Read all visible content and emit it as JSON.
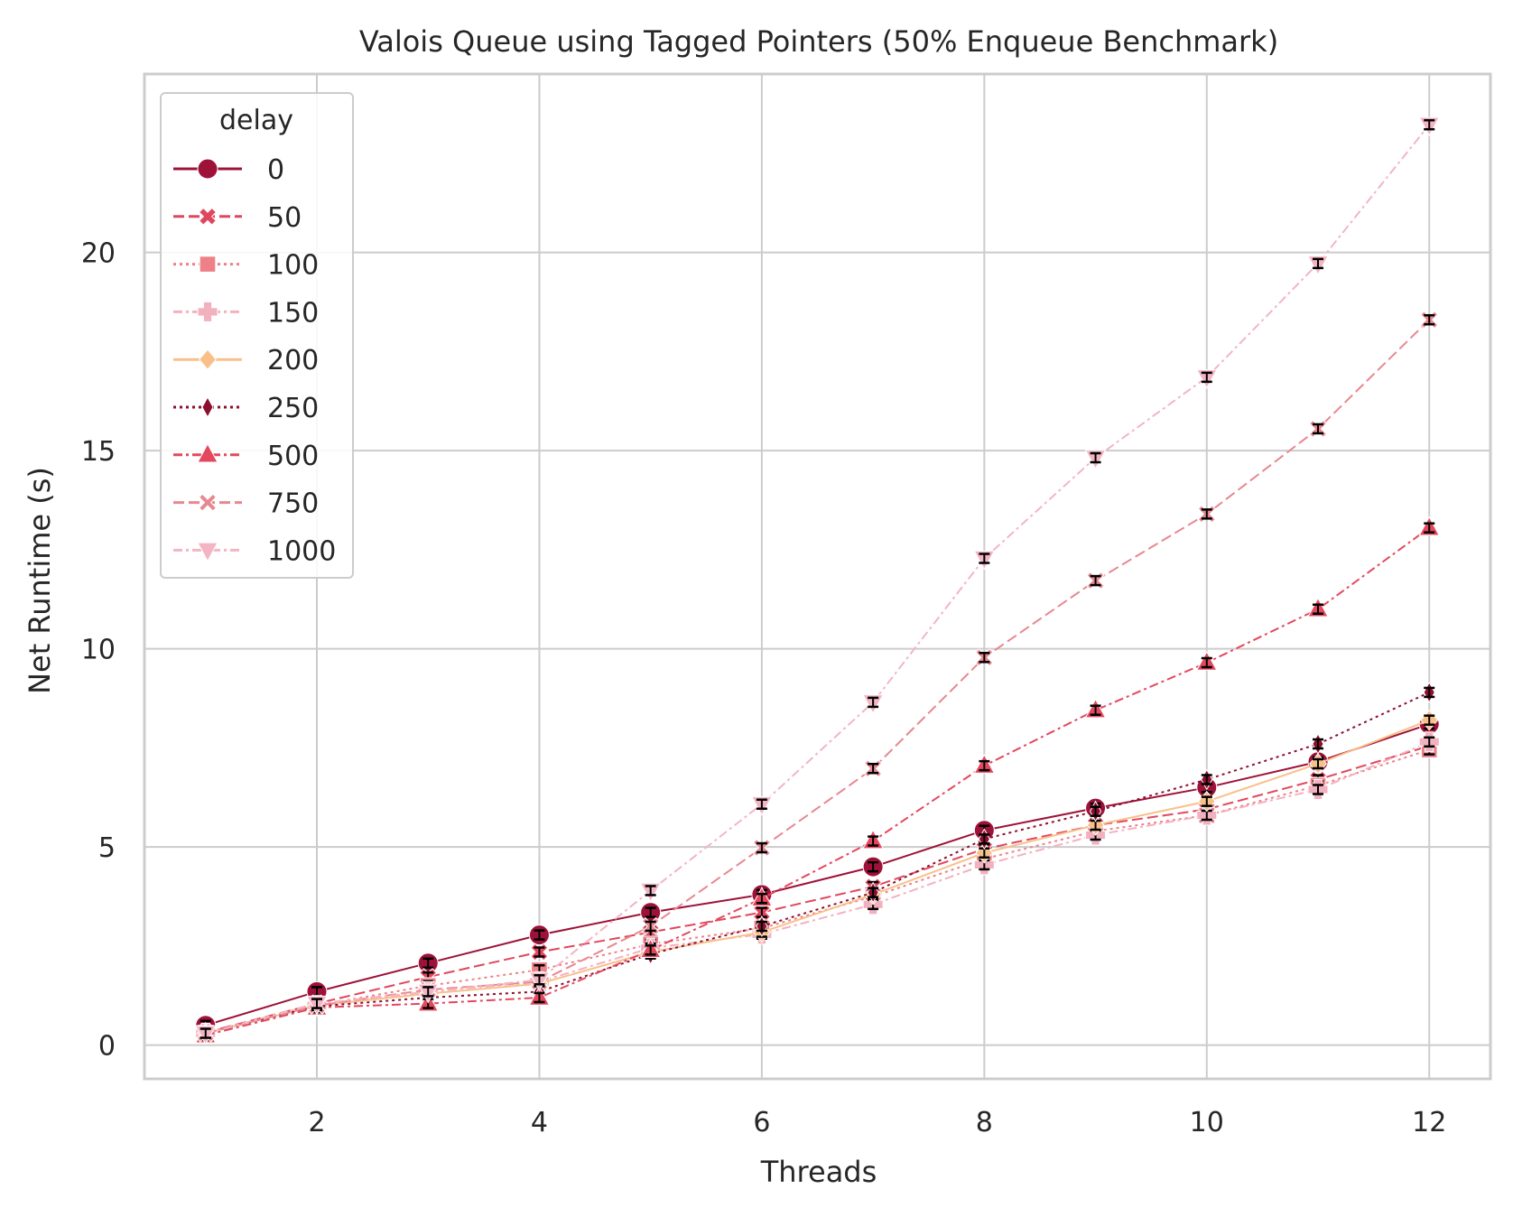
{
  "chart_data": {
    "type": "line",
    "title": "Valois Queue using Tagged Pointers (50% Enqueue Benchmark)",
    "xlabel": "Threads",
    "ylabel": "Net Runtime (s)",
    "xlim": [
      0.45,
      12.55
    ],
    "ylim": [
      -0.85,
      24.5
    ],
    "xticks": [
      2,
      4,
      6,
      8,
      10,
      12
    ],
    "yticks": [
      0,
      5,
      10,
      15,
      20
    ],
    "grid": true,
    "legend": {
      "title": "delay",
      "position": "top-left"
    },
    "x": [
      1,
      2,
      3,
      4,
      5,
      6,
      7,
      8,
      9,
      10,
      11,
      12
    ],
    "series": [
      {
        "name": "0",
        "color": "#9e1239",
        "marker": "circle",
        "dash": "solid",
        "values": [
          0.5,
          1.35,
          2.07,
          2.78,
          3.35,
          3.8,
          4.5,
          5.42,
          5.98,
          6.5,
          7.15,
          8.1
        ]
      },
      {
        "name": "50",
        "color": "#e0475e",
        "marker": "x",
        "dash": "dashed",
        "values": [
          0.32,
          1.05,
          1.72,
          2.35,
          2.85,
          3.35,
          4.0,
          4.95,
          5.55,
          5.95,
          6.7,
          7.55
        ]
      },
      {
        "name": "100",
        "color": "#ee8088",
        "marker": "square",
        "dash": "dotted",
        "values": [
          0.3,
          1.0,
          1.5,
          1.9,
          2.55,
          2.95,
          3.75,
          4.7,
          5.4,
          5.8,
          6.55,
          7.45
        ]
      },
      {
        "name": "150",
        "color": "#f3b1bf",
        "marker": "plus",
        "dash": "dashdot",
        "values": [
          0.3,
          1.0,
          1.35,
          1.6,
          2.45,
          2.8,
          3.55,
          4.55,
          5.3,
          5.8,
          6.45,
          7.65
        ]
      },
      {
        "name": "200",
        "color": "#f9c08a",
        "marker": "diamond",
        "dash": "solid",
        "values": [
          0.3,
          1.0,
          1.3,
          1.55,
          2.35,
          2.85,
          3.8,
          4.85,
          5.55,
          6.15,
          7.1,
          8.2
        ]
      },
      {
        "name": "250",
        "color": "#8d0e2e",
        "marker": "thin_diamond",
        "dash": "dotted",
        "values": [
          0.32,
          0.98,
          1.2,
          1.35,
          2.3,
          3.0,
          3.85,
          5.2,
          5.9,
          6.7,
          7.6,
          8.9
        ]
      },
      {
        "name": "500",
        "color": "#e4485e",
        "marker": "triangle-up",
        "dash": "dashdot",
        "values": [
          0.25,
          0.95,
          1.05,
          1.2,
          2.4,
          3.7,
          5.15,
          7.05,
          8.45,
          9.65,
          11.0,
          13.05
        ]
      },
      {
        "name": "750",
        "color": "#e78890",
        "marker": "x-pinched",
        "dash": "dashed",
        "values": [
          0.3,
          1.0,
          1.4,
          1.6,
          3.0,
          4.98,
          6.98,
          9.78,
          11.72,
          13.4,
          15.55,
          18.3
        ]
      },
      {
        "name": "1000",
        "color": "#f3b5c3",
        "marker": "triangle-down",
        "dash": "dashdot",
        "values": [
          0.3,
          1.05,
          1.35,
          1.65,
          3.9,
          6.08,
          8.65,
          12.28,
          14.82,
          16.85,
          19.72,
          23.22
        ]
      }
    ]
  }
}
